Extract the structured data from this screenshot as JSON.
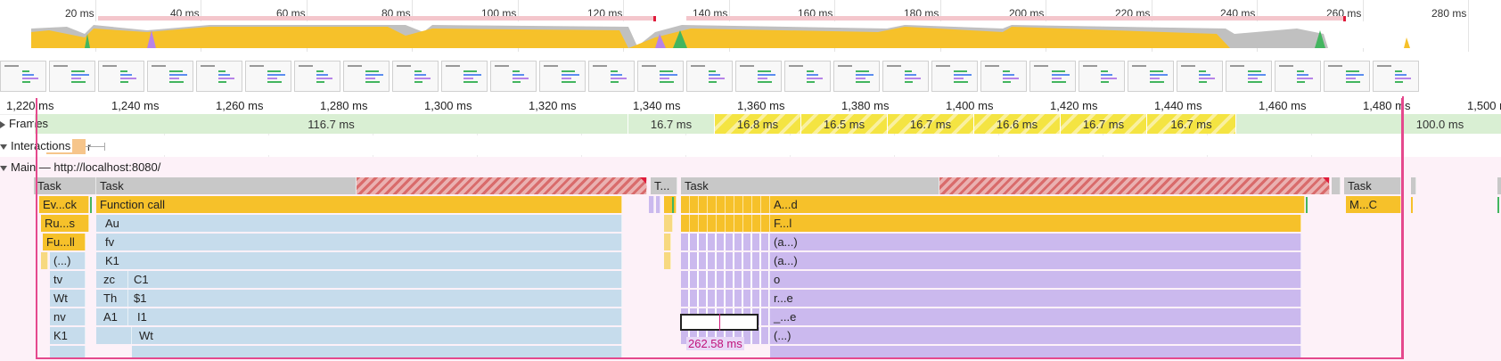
{
  "overview": {
    "ticks": [
      "20 ms",
      "40 ms",
      "60 ms",
      "80 ms",
      "100 ms",
      "120 ms",
      "140 ms",
      "160 ms",
      "180 ms",
      "200 ms",
      "220 ms",
      "240 ms",
      "260 ms",
      "280 ms"
    ]
  },
  "ruler": {
    "ticks": [
      "1,220 ms",
      "1,240 ms",
      "1,260 ms",
      "1,280 ms",
      "1,300 ms",
      "1,320 ms",
      "1,340 ms",
      "1,360 ms",
      "1,380 ms",
      "1,400 ms",
      "1,420 ms",
      "1,440 ms",
      "1,460 ms",
      "1,480 ms",
      "1,500 ms"
    ]
  },
  "tracks": {
    "frames_label": "Frames",
    "interactions_label": "Interactions",
    "interaction_item": "r",
    "main_label": "Main — http://localhost:8080/"
  },
  "frames": [
    "116.7 ms",
    "16.7 ms",
    "16.8 ms",
    "16.5 ms",
    "16.7 ms",
    "16.6 ms",
    "16.7 ms",
    "16.7 ms",
    "100.0 ms"
  ],
  "flame": {
    "row0": [
      "Task",
      "Task",
      "T...",
      "Task",
      "Task"
    ],
    "row1": [
      "Ev...ck",
      "Function call",
      "A...d",
      "M...C"
    ],
    "row2": [
      "Ru...s",
      "Au",
      "F...l"
    ],
    "row3": [
      "Fu...ll",
      "fv",
      "(a...)"
    ],
    "row4": [
      "(...)",
      "K1",
      "(a...)"
    ],
    "row5": [
      "tv",
      "zc",
      "C1",
      "o"
    ],
    "row6": [
      "Wt",
      "Th",
      "$1",
      "r...e"
    ],
    "row7": [
      "nv",
      "A1",
      "I1",
      "_...e"
    ],
    "row8": [
      "K1",
      "Wt",
      "(...)"
    ]
  },
  "selection": {
    "duration": "262.58 ms"
  },
  "colors": {
    "scripting": "#f6c12a",
    "rendering": "#cbb9ee",
    "long_task": "#d96b6b",
    "range": "#e5498d"
  }
}
